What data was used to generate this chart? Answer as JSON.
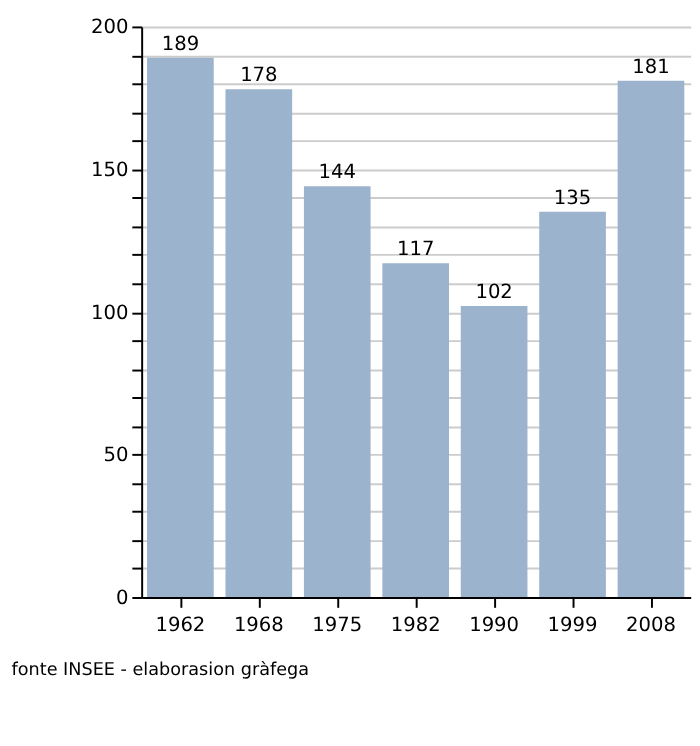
{
  "chart_data": {
    "type": "bar",
    "categories": [
      "1962",
      "1968",
      "1975",
      "1982",
      "1990",
      "1999",
      "2008"
    ],
    "values": [
      189,
      178,
      144,
      117,
      102,
      135,
      181
    ],
    "color": "#9bb3cc",
    "data_labels": true,
    "ylim": [
      0,
      200
    ],
    "yticks": [
      0,
      {
        "value": 10,
        "label": null
      },
      {
        "value": 20,
        "label": null
      },
      {
        "value": 30,
        "label": null
      },
      {
        "value": 40,
        "label": null
      },
      50,
      {
        "value": 60,
        "label": null
      },
      {
        "value": 70,
        "label": null
      },
      {
        "value": 80,
        "label": null
      },
      {
        "value": 90,
        "label": null
      },
      100,
      {
        "value": 110,
        "label": null
      },
      {
        "value": 120,
        "label": null
      },
      {
        "value": 130,
        "label": null
      },
      {
        "value": 140,
        "label": null
      },
      150,
      {
        "value": 160,
        "label": null
      },
      {
        "value": 170,
        "label": null
      },
      {
        "value": 180,
        "label": null
      },
      {
        "value": 190,
        "label": null
      },
      200
    ],
    "grid": "y",
    "annotations": [
      "fonte INSEE - elaborasion gràfega"
    ]
  }
}
